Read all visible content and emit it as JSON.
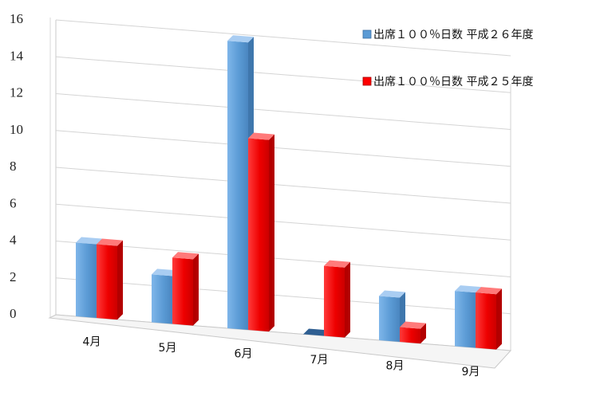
{
  "chart_data": {
    "type": "bar",
    "categories": [
      "4月",
      "5月",
      "6月",
      "7月",
      "8月",
      "9月"
    ],
    "series": [
      {
        "name": "出席１００％日数 平成２６年度",
        "color": "#5b9bd5",
        "values": [
          4,
          2.6,
          15.6,
          0,
          2.4,
          3
        ]
      },
      {
        "name": "出席１００％日数 平成２５年度",
        "color": "#ff0000",
        "values": [
          4,
          3.6,
          10.4,
          3.8,
          0.8,
          3
        ]
      }
    ],
    "yticks": [
      "0",
      "2",
      "4",
      "6",
      "8",
      "10",
      "12",
      "14",
      "16"
    ],
    "ylim": [
      0,
      16
    ],
    "grid": true,
    "legend_position": "top-right",
    "style": "3d-column"
  }
}
